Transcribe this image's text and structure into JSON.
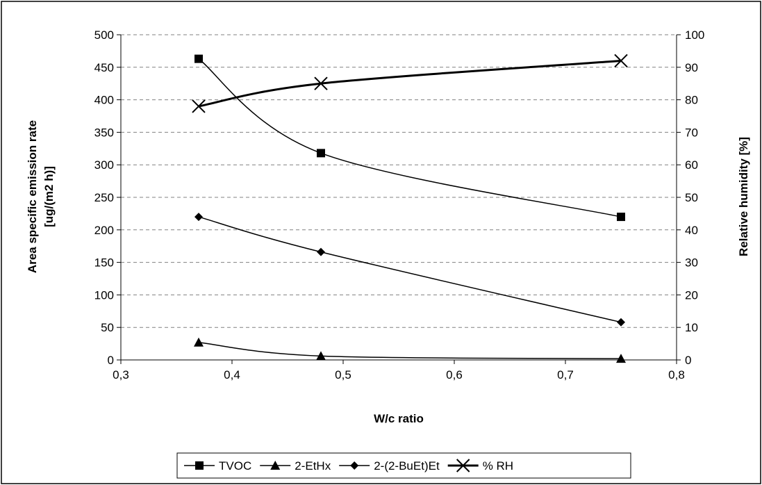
{
  "chart_data": {
    "type": "line",
    "xlabel": "W/c ratio",
    "ylabel_line1": "Area specific emission rate",
    "ylabel_line2": "[ug/(m2 h)]",
    "y2label": "Relative humidity [%]",
    "xlim": [
      0.3,
      0.8
    ],
    "ylim": [
      0,
      500
    ],
    "y2lim": [
      0,
      100
    ],
    "x_ticks": [
      0.3,
      0.4,
      0.5,
      0.6,
      0.7,
      0.8
    ],
    "x_tick_labels": [
      "0,3",
      "0,4",
      "0,5",
      "0,6",
      "0,7",
      "0,8"
    ],
    "y_ticks": [
      0,
      50,
      100,
      150,
      200,
      250,
      300,
      350,
      400,
      450,
      500
    ],
    "y_tick_labels": [
      "0",
      "50",
      "100",
      "150",
      "200",
      "250",
      "300",
      "350",
      "400",
      "450",
      "500"
    ],
    "y2_ticks": [
      0,
      10,
      20,
      30,
      40,
      50,
      60,
      70,
      80,
      90,
      100
    ],
    "y2_tick_labels": [
      "0",
      "10",
      "20",
      "30",
      "40",
      "50",
      "60",
      "70",
      "80",
      "90",
      "100"
    ],
    "grid": "horizontal dashed",
    "legend_position": "bottom",
    "series": [
      {
        "name": "TVOC",
        "marker": "square",
        "axis": "left",
        "stroke": "thin",
        "x": [
          0.37,
          0.48,
          0.75
        ],
        "values": [
          463,
          318,
          220
        ]
      },
      {
        "name": "2-EtHx",
        "marker": "triangle",
        "axis": "left",
        "stroke": "thin",
        "x": [
          0.37,
          0.48,
          0.75
        ],
        "values": [
          27,
          6,
          2
        ]
      },
      {
        "name": "2-(2-BuEt)Et",
        "marker": "diamond",
        "axis": "left",
        "stroke": "thin",
        "x": [
          0.37,
          0.48,
          0.75
        ],
        "values": [
          220,
          166,
          58
        ]
      },
      {
        "name": "% RH",
        "marker": "x",
        "axis": "right",
        "stroke": "thick",
        "x": [
          0.37,
          0.48,
          0.75
        ],
        "values": [
          78,
          85,
          92
        ]
      }
    ]
  },
  "colors": {
    "line": "#000000",
    "grid": "#808080",
    "background": "#ffffff"
  }
}
